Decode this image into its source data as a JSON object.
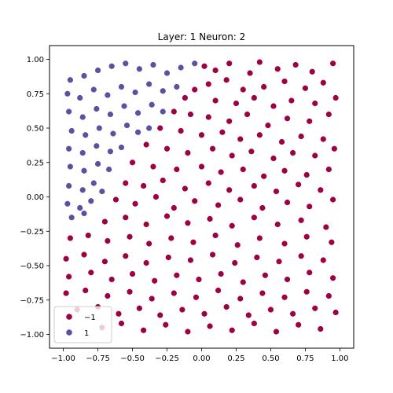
{
  "chart_data": {
    "type": "scatter",
    "title": "Layer: 1 Neuron: 2",
    "xlabel": "",
    "ylabel": "",
    "xlim": [
      -1.1,
      1.1
    ],
    "ylim": [
      -1.1,
      1.1
    ],
    "xticks": [
      -1.0,
      -0.75,
      -0.5,
      -0.25,
      0.0,
      0.25,
      0.5,
      0.75,
      1.0
    ],
    "xtick_labels": [
      "−1.00",
      "−0.75",
      "−0.50",
      "−0.25",
      "0.00",
      "0.25",
      "0.50",
      "0.75",
      "1.00"
    ],
    "yticks": [
      -1.0,
      -0.75,
      -0.5,
      -0.25,
      0.0,
      0.25,
      0.5,
      0.75,
      1.0
    ],
    "ytick_labels": [
      "−1.00",
      "−0.75",
      "−0.50",
      "−0.25",
      "0.00",
      "0.25",
      "0.50",
      "0.75",
      "1.00"
    ],
    "grid": false,
    "legend_position": "lower-left",
    "decision_boundary": "points inside the upper-left region are class 1; the boundary runs roughly from (-0.75, -0.15) through (-0.55, 0.35), (-0.25, 0.65) to (0.05, 1.0)",
    "series": [
      {
        "name": "−1",
        "color": "#9e0142",
        "points": [
          [
            0.02,
            0.95
          ],
          [
            0.1,
            0.92
          ],
          [
            0.2,
            0.97
          ],
          [
            0.35,
            0.9
          ],
          [
            0.42,
            0.98
          ],
          [
            0.55,
            0.93
          ],
          [
            0.68,
            0.96
          ],
          [
            0.8,
            0.91
          ],
          [
            0.95,
            0.97
          ],
          [
            0.05,
            0.82
          ],
          [
            0.18,
            0.85
          ],
          [
            0.3,
            0.78
          ],
          [
            0.45,
            0.8
          ],
          [
            0.6,
            0.84
          ],
          [
            0.75,
            0.79
          ],
          [
            0.88,
            0.83
          ],
          [
            0.97,
            0.72
          ],
          [
            -0.05,
            0.78
          ],
          [
            -0.12,
            0.72
          ],
          [
            0.1,
            0.7
          ],
          [
            0.25,
            0.68
          ],
          [
            0.38,
            0.72
          ],
          [
            0.52,
            0.66
          ],
          [
            0.65,
            0.7
          ],
          [
            0.82,
            0.68
          ],
          [
            -0.2,
            0.62
          ],
          [
            -0.08,
            0.6
          ],
          [
            0.05,
            0.58
          ],
          [
            0.2,
            0.55
          ],
          [
            0.33,
            0.6
          ],
          [
            0.48,
            0.52
          ],
          [
            0.62,
            0.57
          ],
          [
            0.78,
            0.55
          ],
          [
            0.92,
            0.6
          ],
          [
            -0.3,
            0.5
          ],
          [
            -0.15,
            0.48
          ],
          [
            0.0,
            0.45
          ],
          [
            0.15,
            0.47
          ],
          [
            0.28,
            0.42
          ],
          [
            0.42,
            0.45
          ],
          [
            0.58,
            0.4
          ],
          [
            0.72,
            0.44
          ],
          [
            0.88,
            0.42
          ],
          [
            -0.4,
            0.38
          ],
          [
            -0.25,
            0.35
          ],
          [
            -0.1,
            0.32
          ],
          [
            0.08,
            0.35
          ],
          [
            0.22,
            0.3
          ],
          [
            0.36,
            0.33
          ],
          [
            0.52,
            0.28
          ],
          [
            0.66,
            0.32
          ],
          [
            0.82,
            0.3
          ],
          [
            0.96,
            0.35
          ],
          [
            -0.5,
            0.25
          ],
          [
            -0.35,
            0.22
          ],
          [
            -0.18,
            0.2
          ],
          [
            0.0,
            0.22
          ],
          [
            0.14,
            0.18
          ],
          [
            0.3,
            0.2
          ],
          [
            0.45,
            0.15
          ],
          [
            0.6,
            0.19
          ],
          [
            0.76,
            0.16
          ],
          [
            0.92,
            0.2
          ],
          [
            -0.55,
            0.1
          ],
          [
            -0.42,
            0.08
          ],
          [
            -0.28,
            0.12
          ],
          [
            -0.12,
            0.06
          ],
          [
            0.05,
            0.1
          ],
          [
            0.2,
            0.05
          ],
          [
            0.38,
            0.08
          ],
          [
            0.54,
            0.04
          ],
          [
            0.7,
            0.09
          ],
          [
            0.86,
            0.05
          ],
          [
            -0.62,
            -0.02
          ],
          [
            -0.48,
            -0.05
          ],
          [
            -0.33,
            0.0
          ],
          [
            -0.2,
            -0.08
          ],
          [
            -0.05,
            -0.03
          ],
          [
            0.12,
            -0.06
          ],
          [
            0.28,
            -0.02
          ],
          [
            0.44,
            -0.08
          ],
          [
            0.62,
            -0.04
          ],
          [
            0.78,
            -0.07
          ],
          [
            0.95,
            -0.02
          ],
          [
            -0.7,
            -0.18
          ],
          [
            -0.55,
            -0.15
          ],
          [
            -0.4,
            -0.2
          ],
          [
            -0.25,
            -0.14
          ],
          [
            -0.1,
            -0.19
          ],
          [
            0.06,
            -0.16
          ],
          [
            0.22,
            -0.21
          ],
          [
            0.38,
            -0.15
          ],
          [
            0.55,
            -0.2
          ],
          [
            0.72,
            -0.17
          ],
          [
            0.9,
            -0.22
          ],
          [
            -0.95,
            -0.3
          ],
          [
            -0.82,
            -0.28
          ],
          [
            -0.68,
            -0.32
          ],
          [
            -0.52,
            -0.29
          ],
          [
            -0.38,
            -0.34
          ],
          [
            -0.22,
            -0.3
          ],
          [
            -0.06,
            -0.33
          ],
          [
            0.1,
            -0.28
          ],
          [
            0.26,
            -0.35
          ],
          [
            0.42,
            -0.3
          ],
          [
            0.6,
            -0.34
          ],
          [
            0.76,
            -0.29
          ],
          [
            0.94,
            -0.33
          ],
          [
            -0.98,
            -0.45
          ],
          [
            -0.85,
            -0.42
          ],
          [
            -0.7,
            -0.47
          ],
          [
            -0.55,
            -0.43
          ],
          [
            -0.4,
            -0.48
          ],
          [
            -0.24,
            -0.44
          ],
          [
            -0.08,
            -0.46
          ],
          [
            0.08,
            -0.42
          ],
          [
            0.24,
            -0.48
          ],
          [
            0.4,
            -0.44
          ],
          [
            0.56,
            -0.47
          ],
          [
            0.72,
            -0.43
          ],
          [
            0.88,
            -0.46
          ],
          [
            -0.96,
            -0.58
          ],
          [
            -0.8,
            -0.55
          ],
          [
            -0.65,
            -0.6
          ],
          [
            -0.5,
            -0.56
          ],
          [
            -0.34,
            -0.61
          ],
          [
            -0.18,
            -0.57
          ],
          [
            -0.02,
            -0.6
          ],
          [
            0.14,
            -0.56
          ],
          [
            0.3,
            -0.62
          ],
          [
            0.46,
            -0.57
          ],
          [
            0.62,
            -0.6
          ],
          [
            0.78,
            -0.55
          ],
          [
            0.95,
            -0.59
          ],
          [
            -0.98,
            -0.7
          ],
          [
            -0.84,
            -0.68
          ],
          [
            -0.68,
            -0.72
          ],
          [
            -0.52,
            -0.69
          ],
          [
            -0.36,
            -0.74
          ],
          [
            -0.2,
            -0.7
          ],
          [
            -0.04,
            -0.73
          ],
          [
            0.12,
            -0.68
          ],
          [
            0.28,
            -0.74
          ],
          [
            0.44,
            -0.7
          ],
          [
            0.6,
            -0.73
          ],
          [
            0.76,
            -0.69
          ],
          [
            0.92,
            -0.72
          ],
          [
            -0.9,
            -0.82
          ],
          [
            -0.75,
            -0.8
          ],
          [
            -0.6,
            -0.85
          ],
          [
            -0.45,
            -0.81
          ],
          [
            -0.3,
            -0.86
          ],
          [
            -0.14,
            -0.82
          ],
          [
            0.02,
            -0.85
          ],
          [
            0.18,
            -0.8
          ],
          [
            0.34,
            -0.86
          ],
          [
            0.5,
            -0.82
          ],
          [
            0.66,
            -0.85
          ],
          [
            0.82,
            -0.81
          ],
          [
            0.97,
            -0.84
          ],
          [
            -0.72,
            -0.95
          ],
          [
            -0.58,
            -0.92
          ],
          [
            -0.42,
            -0.97
          ],
          [
            -0.26,
            -0.93
          ],
          [
            -0.1,
            -0.98
          ],
          [
            0.06,
            -0.94
          ],
          [
            0.22,
            -0.97
          ],
          [
            0.38,
            -0.92
          ],
          [
            0.54,
            -0.98
          ],
          [
            0.7,
            -0.93
          ],
          [
            0.86,
            -0.96
          ]
        ]
      },
      {
        "name": "1",
        "color": "#5e4fa2",
        "points": [
          [
            -0.95,
            0.85
          ],
          [
            -0.85,
            0.88
          ],
          [
            -0.75,
            0.92
          ],
          [
            -0.65,
            0.95
          ],
          [
            -0.55,
            0.97
          ],
          [
            -0.45,
            0.93
          ],
          [
            -0.35,
            0.96
          ],
          [
            -0.25,
            0.9
          ],
          [
            -0.15,
            0.94
          ],
          [
            -0.05,
            0.97
          ],
          [
            -0.97,
            0.75
          ],
          [
            -0.88,
            0.72
          ],
          [
            -0.78,
            0.78
          ],
          [
            -0.68,
            0.74
          ],
          [
            -0.58,
            0.8
          ],
          [
            -0.48,
            0.76
          ],
          [
            -0.38,
            0.82
          ],
          [
            -0.28,
            0.77
          ],
          [
            -0.18,
            0.8
          ],
          [
            -0.96,
            0.62
          ],
          [
            -0.86,
            0.58
          ],
          [
            -0.76,
            0.64
          ],
          [
            -0.66,
            0.6
          ],
          [
            -0.56,
            0.66
          ],
          [
            -0.46,
            0.61
          ],
          [
            -0.36,
            0.67
          ],
          [
            -0.28,
            0.62
          ],
          [
            -0.94,
            0.48
          ],
          [
            -0.84,
            0.45
          ],
          [
            -0.74,
            0.5
          ],
          [
            -0.64,
            0.46
          ],
          [
            -0.54,
            0.52
          ],
          [
            -0.46,
            0.47
          ],
          [
            -0.38,
            0.5
          ],
          [
            -0.96,
            0.35
          ],
          [
            -0.86,
            0.32
          ],
          [
            -0.76,
            0.37
          ],
          [
            -0.66,
            0.33
          ],
          [
            -0.58,
            0.36
          ],
          [
            -0.95,
            0.22
          ],
          [
            -0.85,
            0.19
          ],
          [
            -0.75,
            0.24
          ],
          [
            -0.67,
            0.2
          ],
          [
            -0.96,
            0.08
          ],
          [
            -0.86,
            0.05
          ],
          [
            -0.78,
            0.1
          ],
          [
            -0.72,
            0.04
          ],
          [
            -0.97,
            -0.05
          ],
          [
            -0.88,
            -0.08
          ],
          [
            -0.8,
            -0.03
          ],
          [
            -0.94,
            -0.15
          ],
          [
            -0.85,
            -0.12
          ]
        ]
      }
    ]
  }
}
